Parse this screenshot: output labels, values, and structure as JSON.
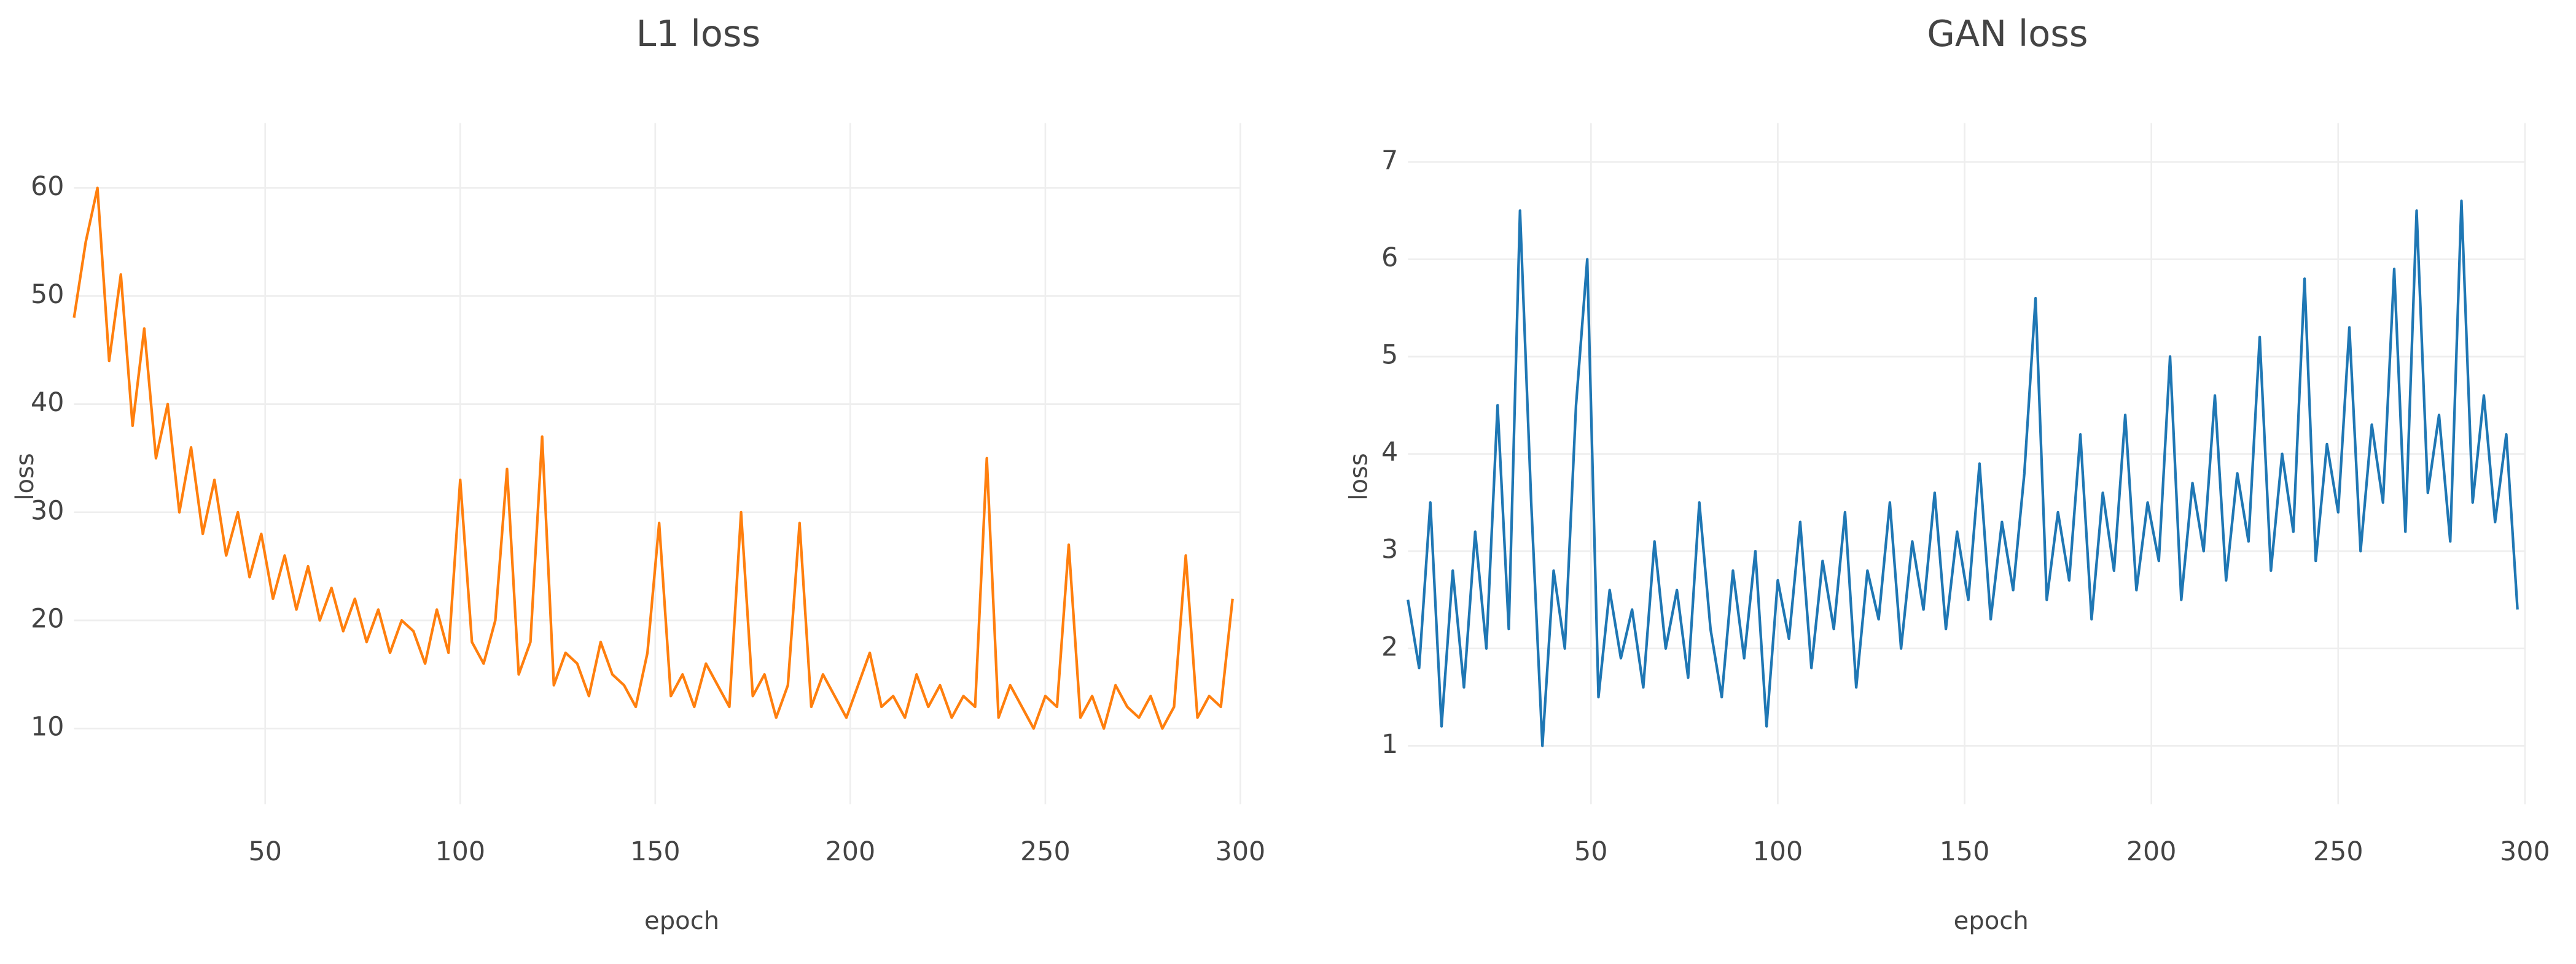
{
  "chart_data": [
    {
      "type": "line",
      "title": "L1 loss",
      "x_label": "epoch",
      "y_label": "loss",
      "color": "#ff7f0e",
      "grid": true,
      "xlim": [
        1,
        300
      ],
      "ylim": [
        3,
        66
      ],
      "xticks": [
        50,
        100,
        150,
        200,
        250,
        300
      ],
      "yticks": [
        10,
        20,
        30,
        40,
        50,
        60
      ],
      "x": [
        1,
        4,
        7,
        10,
        13,
        16,
        19,
        22,
        25,
        28,
        31,
        34,
        37,
        40,
        43,
        46,
        49,
        52,
        55,
        58,
        61,
        64,
        67,
        70,
        73,
        76,
        79,
        82,
        85,
        88,
        91,
        94,
        97,
        100,
        103,
        106,
        109,
        112,
        115,
        118,
        121,
        124,
        127,
        130,
        133,
        136,
        139,
        142,
        145,
        148,
        151,
        154,
        157,
        160,
        163,
        166,
        169,
        172,
        175,
        178,
        181,
        184,
        187,
        190,
        193,
        196,
        199,
        202,
        205,
        208,
        211,
        214,
        217,
        220,
        223,
        226,
        229,
        232,
        235,
        238,
        241,
        244,
        247,
        250,
        253,
        256,
        259,
        262,
        265,
        268,
        271,
        274,
        277,
        280,
        283,
        286,
        289,
        292,
        295,
        298
      ],
      "values": [
        48,
        55,
        60,
        44,
        52,
        38,
        47,
        35,
        40,
        30,
        36,
        28,
        33,
        26,
        30,
        24,
        28,
        22,
        26,
        21,
        25,
        20,
        23,
        19,
        22,
        18,
        21,
        17,
        20,
        19,
        16,
        21,
        17,
        33,
        18,
        16,
        20,
        34,
        15,
        18,
        37,
        14,
        17,
        16,
        13,
        18,
        15,
        14,
        12,
        17,
        29,
        13,
        15,
        12,
        16,
        14,
        12,
        30,
        13,
        15,
        11,
        14,
        29,
        12,
        15,
        13,
        11,
        14,
        17,
        12,
        13,
        11,
        15,
        12,
        14,
        11,
        13,
        12,
        35,
        11,
        14,
        12,
        10,
        13,
        12,
        27,
        11,
        13,
        10,
        14,
        12,
        11,
        13,
        10,
        12,
        26,
        11,
        13,
        12,
        22
      ]
    },
    {
      "type": "line",
      "title": "GAN loss",
      "x_label": "epoch",
      "y_label": "loss",
      "color": "#1f77b4",
      "grid": true,
      "xlim": [
        1,
        300
      ],
      "ylim": [
        0.4,
        7.4
      ],
      "xticks": [
        50,
        100,
        150,
        200,
        250,
        300
      ],
      "yticks": [
        1,
        2,
        3,
        4,
        5,
        6,
        7
      ],
      "x": [
        1,
        4,
        7,
        10,
        13,
        16,
        19,
        22,
        25,
        28,
        31,
        34,
        37,
        40,
        43,
        46,
        49,
        52,
        55,
        58,
        61,
        64,
        67,
        70,
        73,
        76,
        79,
        82,
        85,
        88,
        91,
        94,
        97,
        100,
        103,
        106,
        109,
        112,
        115,
        118,
        121,
        124,
        127,
        130,
        133,
        136,
        139,
        142,
        145,
        148,
        151,
        154,
        157,
        160,
        163,
        166,
        169,
        172,
        175,
        178,
        181,
        184,
        187,
        190,
        193,
        196,
        199,
        202,
        205,
        208,
        211,
        214,
        217,
        220,
        223,
        226,
        229,
        232,
        235,
        238,
        241,
        244,
        247,
        250,
        253,
        256,
        259,
        262,
        265,
        268,
        271,
        274,
        277,
        280,
        283,
        286,
        289,
        292,
        295,
        298
      ],
      "values": [
        2.5,
        1.8,
        3.5,
        1.2,
        2.8,
        1.6,
        3.2,
        2.0,
        4.5,
        2.2,
        6.5,
        3.5,
        1.0,
        2.8,
        2.0,
        4.5,
        6.0,
        1.5,
        2.6,
        1.9,
        2.4,
        1.6,
        3.1,
        2.0,
        2.6,
        1.7,
        3.5,
        2.2,
        1.5,
        2.8,
        1.9,
        3.0,
        1.2,
        2.7,
        2.1,
        3.3,
        1.8,
        2.9,
        2.2,
        3.4,
        1.6,
        2.8,
        2.3,
        3.5,
        2.0,
        3.1,
        2.4,
        3.6,
        2.2,
        3.2,
        2.5,
        3.9,
        2.3,
        3.3,
        2.6,
        3.8,
        5.6,
        2.5,
        3.4,
        2.7,
        4.2,
        2.3,
        3.6,
        2.8,
        4.4,
        2.6,
        3.5,
        2.9,
        5.0,
        2.5,
        3.7,
        3.0,
        4.6,
        2.7,
        3.8,
        3.1,
        5.2,
        2.8,
        4.0,
        3.2,
        5.8,
        2.9,
        4.1,
        3.4,
        5.3,
        3.0,
        4.3,
        3.5,
        5.9,
        3.2,
        6.5,
        3.6,
        4.4,
        3.1,
        6.6,
        3.5,
        4.6,
        3.3,
        4.2,
        2.4
      ]
    }
  ]
}
